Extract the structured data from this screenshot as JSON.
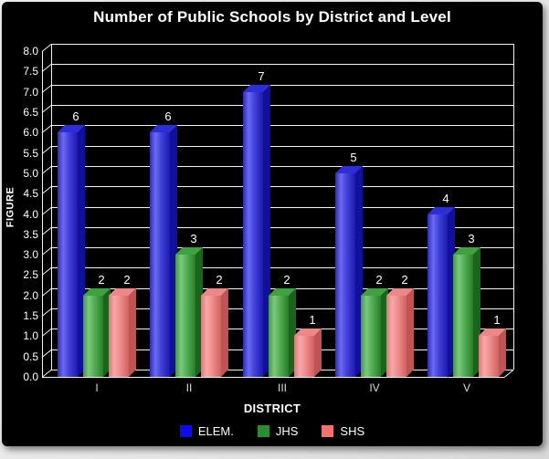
{
  "page": {
    "background": "#e6e6e6",
    "chart_background": "#000000"
  },
  "chart_data": {
    "type": "bar",
    "title": "Number of Public Schools by District and Level",
    "xlabel": "DISTRICT",
    "ylabel": "FIGURE",
    "categories": [
      "I",
      "II",
      "III",
      "IV",
      "V"
    ],
    "series": [
      {
        "name": "ELEM.",
        "color": "#0b0bf2",
        "values": [
          6,
          6,
          7,
          5,
          4
        ]
      },
      {
        "name": "JHS",
        "color": "#2e8b2e",
        "values": [
          2,
          3,
          2,
          2,
          3
        ]
      },
      {
        "name": "SHS",
        "color": "#f37070",
        "values": [
          2,
          2,
          1,
          2,
          1
        ]
      }
    ],
    "ylim": [
      0.0,
      8.0
    ],
    "ytick_step": 0.5,
    "yticks": [
      "0.0",
      "0.5",
      "1.0",
      "1.5",
      "2.0",
      "2.5",
      "3.0",
      "3.5",
      "4.0",
      "4.5",
      "5.0",
      "5.5",
      "6.0",
      "6.5",
      "7.0",
      "7.5",
      "8.0"
    ],
    "grid": true,
    "gridline_color": "#ffffff",
    "text_color": "#ffffff",
    "legend_position": "bottom",
    "data_labels": true,
    "style": "3d-black"
  }
}
